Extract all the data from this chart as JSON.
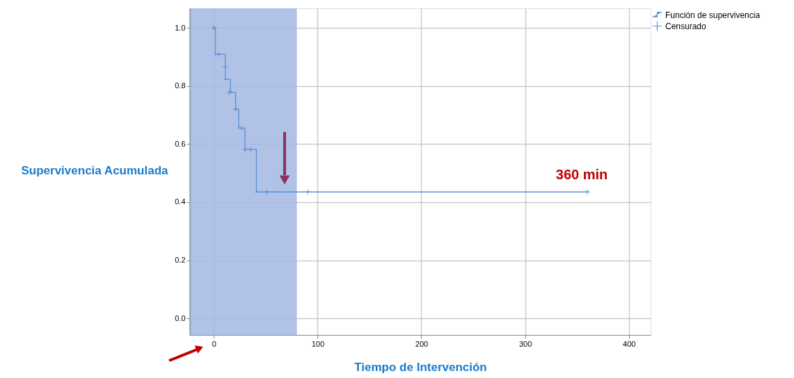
{
  "chart_data": {
    "type": "step",
    "xlabel": "Tiempo de Intervención",
    "ylabel": "Supervivencia Acumulada",
    "xlim": [
      -23,
      421
    ],
    "ylim": [
      -0.057,
      1.067
    ],
    "xticks": [
      0,
      100,
      200,
      300,
      400
    ],
    "yticks": [
      {
        "value": 0,
        "label": "0.0"
      },
      {
        "value": 0.2,
        "label": "0.2"
      },
      {
        "value": 0.4,
        "label": "0.4"
      },
      {
        "value": 0.6,
        "label": "0.6"
      },
      {
        "value": 0.8,
        "label": "0.8"
      },
      {
        "value": 1,
        "label": "1.0"
      }
    ],
    "series": [
      {
        "name": "Función de supervivencia",
        "color": "#5b8fd6",
        "x": [
          0,
          1.5,
          11,
          16,
          21,
          24,
          30,
          41,
          360
        ],
        "values": [
          1,
          0.909,
          0.823,
          0.778,
          0.72,
          0.655,
          0.581,
          0.435,
          0.435
        ]
      },
      {
        "name": "Censurado",
        "type": "scatter",
        "marker": "cross",
        "color": "#5b8fd6",
        "x": [
          0,
          4.7,
          11,
          15,
          21,
          27,
          30,
          35.5,
          51,
          90.5,
          360
        ],
        "values": [
          1,
          0.909,
          0.866,
          0.778,
          0.72,
          0.655,
          0.581,
          0.581,
          0.435,
          0.435,
          0.435
        ]
      }
    ],
    "bands": [
      {
        "axis": "x",
        "from": -23,
        "to": 80,
        "color": "#a2b7e0"
      }
    ],
    "annotations": [
      {
        "text": "360 min",
        "x": 360,
        "y": 0.435
      }
    ],
    "grid": true,
    "legend": "top right"
  }
}
